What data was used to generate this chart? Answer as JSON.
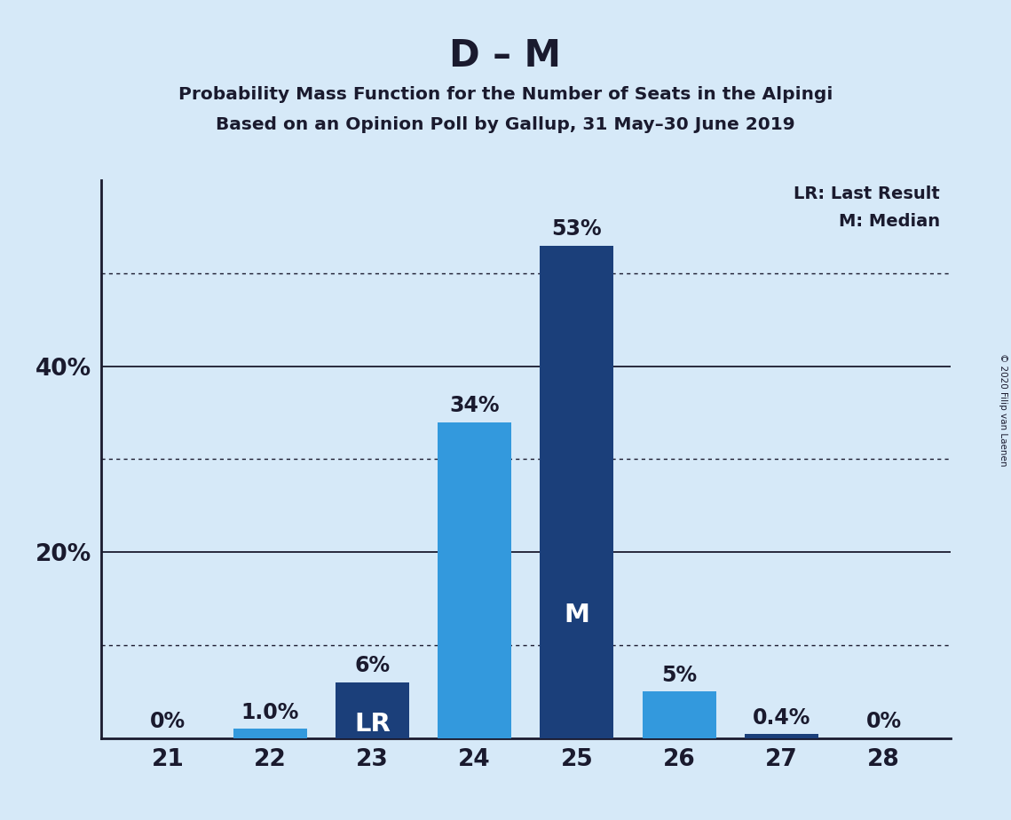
{
  "title": "D – M",
  "subtitle1": "Probability Mass Function for the Number of Seats in the Alpingi",
  "subtitle2": "Based on an Opinion Poll by Gallup, 31 May–30 June 2019",
  "copyright": "© 2020 Filip van Laenen",
  "seats": [
    21,
    22,
    23,
    24,
    25,
    26,
    27,
    28
  ],
  "values": [
    0.0,
    1.0,
    6.0,
    34.0,
    53.0,
    5.0,
    0.4,
    0.0
  ],
  "bar_colors": [
    "#3399DD",
    "#3399DD",
    "#1B3F7A",
    "#3399DD",
    "#1B3F7A",
    "#3399DD",
    "#1B3F7A",
    "#3399DD"
  ],
  "labels": [
    "0%",
    "1.0%",
    "6%",
    "34%",
    "53%",
    "5%",
    "0.4%",
    "0%"
  ],
  "special_labels": {
    "23": "LR",
    "25": "M"
  },
  "background_color": "#D6E9F8",
  "bar_width": 0.72,
  "ylim": [
    0,
    60
  ],
  "solid_gridlines": [
    20,
    40
  ],
  "dotted_gridlines": [
    10,
    30,
    50
  ],
  "legend_text1": "LR: Last Result",
  "legend_text2": "M: Median",
  "title_fontsize": 30,
  "subtitle_fontsize": 14.5,
  "label_fontsize": 17,
  "tick_fontsize": 19,
  "axis_color": "#1A1A2E",
  "legend_fontsize": 14
}
